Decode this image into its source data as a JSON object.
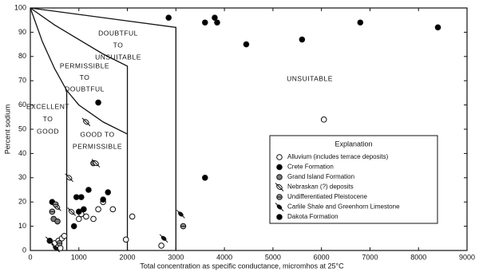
{
  "chart_data": {
    "type": "scatter",
    "xlabel": "Total concentration as specific conductance, micromhos at 25°C",
    "ylabel": "Percent sodium",
    "xlim": [
      0,
      9000
    ],
    "ylim": [
      0,
      100
    ],
    "xticks": [
      0,
      1000,
      2000,
      3000,
      4000,
      5000,
      6000,
      7000,
      8000,
      9000
    ],
    "yticks": [
      0,
      10,
      20,
      30,
      40,
      50,
      60,
      70,
      80,
      90,
      100
    ],
    "boundaries": [
      {
        "x": [
          0,
          250,
          500,
          750,
          750
        ],
        "y": [
          100,
          86,
          75,
          66,
          0
        ]
      },
      {
        "x": [
          0,
          500,
          1000,
          1500,
          2000,
          2000
        ],
        "y": [
          100,
          93,
          87,
          81,
          76,
          0
        ]
      },
      {
        "x": [
          750,
          1000,
          1500,
          2000
        ],
        "y": [
          66,
          60,
          53,
          48
        ]
      },
      {
        "x": [
          0,
          3000,
          3000
        ],
        "y": [
          100,
          92,
          0
        ]
      }
    ],
    "annotations": [
      [
        "EXCELLENT",
        "TO",
        "GOOD"
      ],
      [
        "PERMISSIBLE",
        "TO",
        "DOUBTFUL"
      ],
      [
        "GOOD TO",
        "PERMISSIBLE"
      ],
      [
        "DOUBTFUL",
        "TO",
        "UNSUITABLE"
      ],
      [
        "UNSUITABLE"
      ]
    ],
    "legend_title": "Explanation",
    "legend": "right",
    "series": [
      {
        "name": "Alluvium (includes terrace deposits)",
        "marker": "open",
        "color": "#000000",
        "x": [
          6050,
          2100,
          1970,
          1700,
          1500,
          1400,
          1000,
          1050,
          1150,
          1300,
          500,
          580,
          650,
          700,
          620,
          2700
        ],
        "y": [
          54,
          14,
          4.5,
          17,
          20,
          17,
          13,
          15,
          14,
          13,
          3,
          4,
          5,
          6,
          1,
          2
        ]
      },
      {
        "name": "Crete Formation",
        "marker": "filled",
        "color": "#000000",
        "x": [
          3800,
          3600,
          4450,
          5600,
          6800,
          8400,
          1400,
          900,
          950,
          1050,
          1200,
          1600,
          1500,
          450,
          400
        ],
        "y": [
          96,
          94,
          85,
          87,
          94,
          92,
          61,
          10,
          22,
          22,
          25,
          24,
          21,
          20,
          4
        ]
      },
      {
        "name": "Grand Island Formation",
        "marker": "gray",
        "color": "#777777",
        "x": [
          1300,
          480,
          560
        ],
        "y": [
          36,
          13,
          12
        ]
      },
      {
        "name": "Nebraskan (?) deposits",
        "marker": "slash",
        "color": "#000000",
        "x": [
          1150,
          800,
          550,
          850,
          1350
        ],
        "y": [
          53,
          30,
          18,
          16,
          36
        ]
      },
      {
        "name": "Undifferentiated Pleistocene",
        "marker": "hatched",
        "color": "#000000",
        "x": [
          450,
          520,
          3150,
          600
        ],
        "y": [
          16,
          19,
          10,
          3
        ]
      },
      {
        "name": "Carlile Shale and Greenhorn  Limestone",
        "marker": "slashfilled",
        "color": "#000000",
        "x": [
          2750,
          3100,
          400,
          520
        ],
        "y": [
          5,
          15,
          4,
          1
        ]
      },
      {
        "name": "Dakota Formation",
        "marker": "filled",
        "color": "#000000",
        "x": [
          3850,
          2850,
          1000,
          3600,
          1100
        ],
        "y": [
          94,
          96,
          16,
          30,
          17
        ]
      }
    ]
  }
}
